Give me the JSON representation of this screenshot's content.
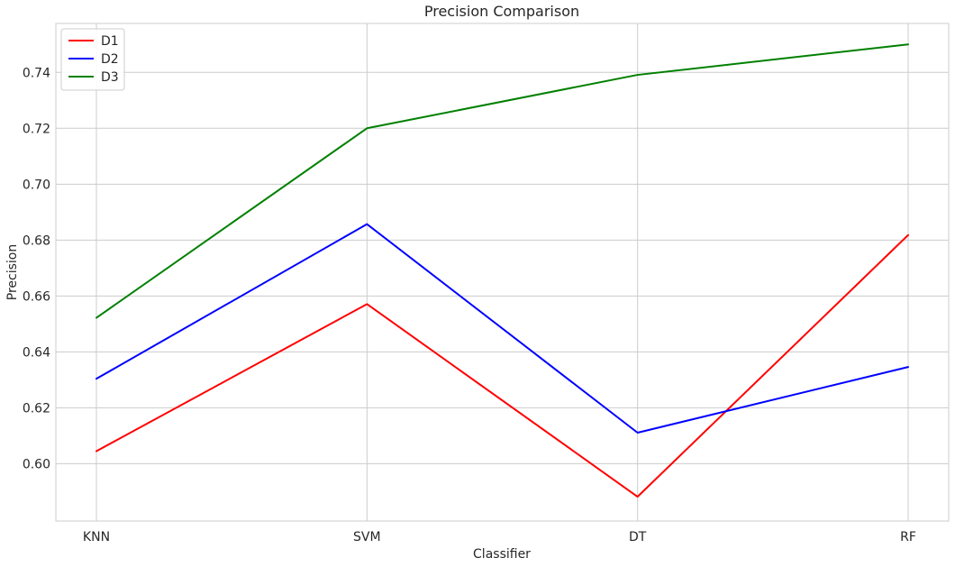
{
  "chart_data": {
    "type": "line",
    "title": "Precision Comparison",
    "xlabel": "Classifier",
    "ylabel": "Precision",
    "categories": [
      "KNN",
      "SVM",
      "DT",
      "RF"
    ],
    "ylim": [
      0.5795,
      0.7575
    ],
    "yticks": [
      0.6,
      0.62,
      0.64,
      0.66,
      0.68,
      0.7,
      0.72,
      0.74
    ],
    "ytick_labels": [
      "0.60",
      "0.62",
      "0.64",
      "0.66",
      "0.68",
      "0.70",
      "0.72",
      "0.74"
    ],
    "grid": true,
    "legend_position": "top-left",
    "series": [
      {
        "name": "D1",
        "color": "#ff0000",
        "values": [
          0.6045,
          0.6571,
          0.5882,
          0.6818
        ]
      },
      {
        "name": "D2",
        "color": "#0000ff",
        "values": [
          0.6304,
          0.6857,
          0.6111,
          0.6346
        ]
      },
      {
        "name": "D3",
        "color": "#008000",
        "values": [
          0.6522,
          0.72,
          0.7391,
          0.75
        ]
      }
    ]
  }
}
